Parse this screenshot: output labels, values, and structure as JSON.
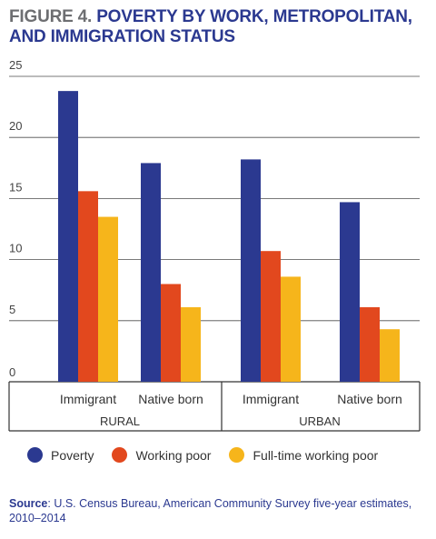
{
  "figure_label": "FIGURE 4.",
  "colors": {
    "title": "#2b3990",
    "figure_label": "#6d6e71",
    "source_text": "#2b3990"
  },
  "chart_data": {
    "type": "bar",
    "title": "POVERTY BY WORK, METROPOLITAN, AND IMMIGRATION STATUS",
    "xlabel": "",
    "ylabel": "",
    "ylim": [
      0,
      25
    ],
    "yticks": [
      "0",
      "5",
      "10",
      "15",
      "20",
      "25"
    ],
    "ytick_values": [
      0,
      5,
      10,
      15,
      20,
      25
    ],
    "grid": true,
    "groups": [
      {
        "label": "RURAL",
        "categories": [
          "Immigrant",
          "Native born"
        ]
      },
      {
        "label": "URBAN",
        "categories": [
          "Immigrant",
          "Native born"
        ]
      }
    ],
    "categories": [
      "Immigrant",
      "Native born",
      "Immigrant",
      "Native born"
    ],
    "series": [
      {
        "name": "Poverty",
        "color": "#2b3990",
        "values": [
          23.8,
          17.9,
          18.2,
          14.7
        ]
      },
      {
        "name": "Working poor",
        "color": "#e2481e",
        "values": [
          15.6,
          8.0,
          10.7,
          6.1
        ]
      },
      {
        "name": "Full-time working poor",
        "color": "#f6b51b",
        "values": [
          13.5,
          6.1,
          8.6,
          4.3
        ]
      }
    ],
    "legend_position": "bottom"
  },
  "source": {
    "label": "Source",
    "text": ": U.S. Census Bureau, American Community Survey five-year estimates, 2010–2014"
  }
}
